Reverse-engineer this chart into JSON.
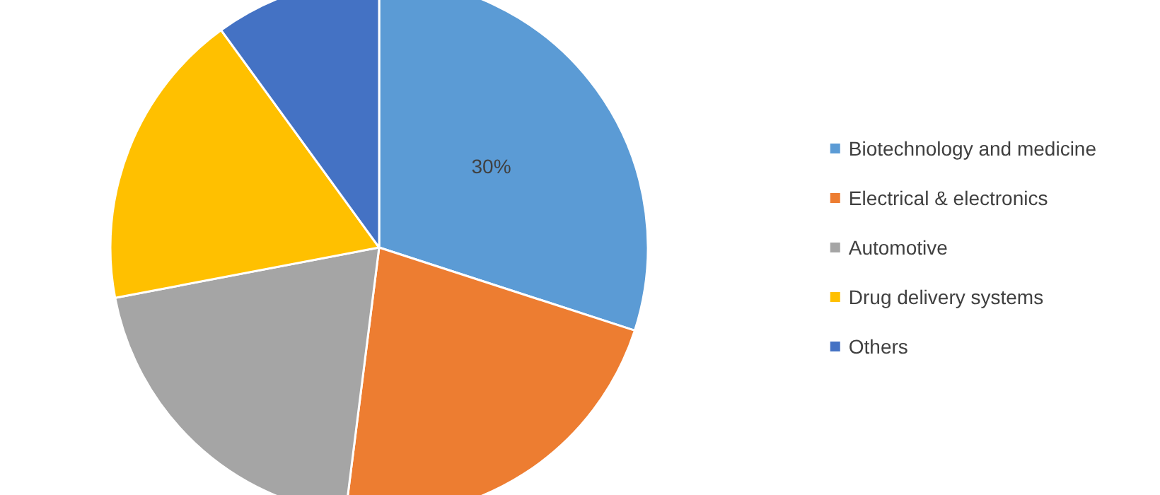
{
  "chart_data": {
    "type": "pie",
    "categories": [
      "Biotechnology and medicine",
      "Electrical & electronics",
      "Automotive",
      "Drug delivery systems",
      "Others"
    ],
    "values": [
      30,
      22,
      20,
      18,
      10
    ],
    "colors": [
      "#5b9bd5",
      "#ed7d31",
      "#a5a5a5",
      "#ffc000",
      "#4472c4"
    ],
    "value_labels": [
      "30%",
      null,
      null,
      null,
      null
    ],
    "legend": "right"
  }
}
